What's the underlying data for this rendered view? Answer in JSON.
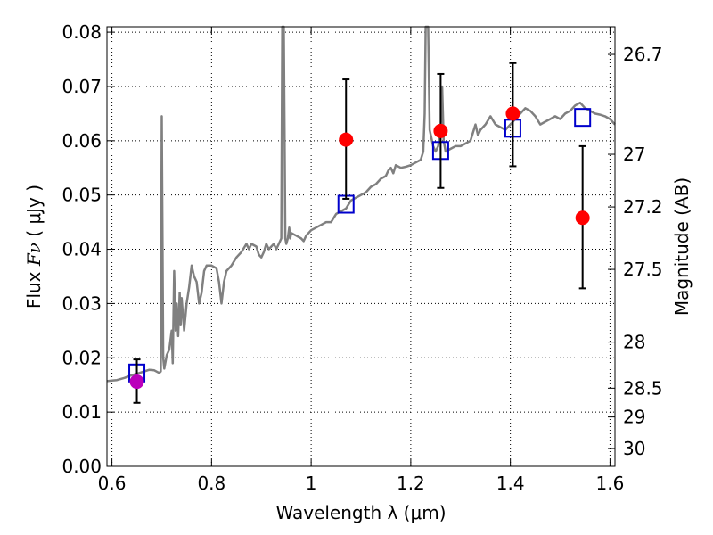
{
  "chart_data": {
    "type": "line",
    "xlabel": "Wavelength  λ (μm)",
    "ylabel": "Flux  Fν  ( μJy )",
    "ylabel_right": "Magnitude (AB)",
    "xlim": [
      0.59,
      1.61
    ],
    "ylim": [
      0.0,
      0.081
    ],
    "x_ticks": [
      0.6,
      0.8,
      1.0,
      1.2,
      1.4,
      1.6
    ],
    "x_tick_labels": [
      "0.6",
      "0.8",
      "1",
      "1.2",
      "1.4",
      "1.6"
    ],
    "y_ticks": [
      0.0,
      0.01,
      0.02,
      0.03,
      0.04,
      0.05,
      0.06,
      0.07,
      0.08
    ],
    "y_tick_labels": [
      "0.00",
      "0.01",
      "0.02",
      "0.03",
      "0.04",
      "0.05",
      "0.06",
      "0.07",
      "0.08"
    ],
    "right_ticks": [
      {
        "flux": 0.0759,
        "label": "26.7"
      },
      {
        "flux": 0.0575,
        "label": "27"
      },
      {
        "flux": 0.0478,
        "label": "27.2"
      },
      {
        "flux": 0.0363,
        "label": "27.5"
      },
      {
        "flux": 0.0229,
        "label": "28"
      },
      {
        "flux": 0.0144,
        "label": "28.5"
      },
      {
        "flux": 0.0091,
        "label": "29"
      },
      {
        "flux": 0.0033,
        "label": "30"
      }
    ],
    "grid": true,
    "series": [
      {
        "kind": "template_spectrum",
        "color": "#808080",
        "points": [
          [
            0.59,
            0.0157
          ],
          [
            0.61,
            0.0159
          ],
          [
            0.625,
            0.0163
          ],
          [
            0.64,
            0.0168
          ],
          [
            0.655,
            0.0172
          ],
          [
            0.665,
            0.0175
          ],
          [
            0.675,
            0.0178
          ],
          [
            0.685,
            0.0177
          ],
          [
            0.695,
            0.0172
          ],
          [
            0.698,
            0.0175
          ],
          [
            0.7,
            0.0645
          ],
          [
            0.703,
            0.02
          ],
          [
            0.705,
            0.018
          ],
          [
            0.71,
            0.0205
          ],
          [
            0.715,
            0.0215
          ],
          [
            0.72,
            0.025
          ],
          [
            0.722,
            0.019
          ],
          [
            0.725,
            0.036
          ],
          [
            0.728,
            0.025
          ],
          [
            0.73,
            0.03
          ],
          [
            0.733,
            0.024
          ],
          [
            0.736,
            0.032
          ],
          [
            0.738,
            0.026
          ],
          [
            0.74,
            0.031
          ],
          [
            0.745,
            0.025
          ],
          [
            0.75,
            0.03
          ],
          [
            0.755,
            0.033
          ],
          [
            0.76,
            0.037
          ],
          [
            0.765,
            0.035
          ],
          [
            0.77,
            0.034
          ],
          [
            0.775,
            0.03
          ],
          [
            0.78,
            0.032
          ],
          [
            0.785,
            0.036
          ],
          [
            0.79,
            0.037
          ],
          [
            0.8,
            0.037
          ],
          [
            0.81,
            0.0365
          ],
          [
            0.815,
            0.034
          ],
          [
            0.82,
            0.03
          ],
          [
            0.825,
            0.034
          ],
          [
            0.83,
            0.036
          ],
          [
            0.84,
            0.037
          ],
          [
            0.85,
            0.0385
          ],
          [
            0.86,
            0.0395
          ],
          [
            0.87,
            0.041
          ],
          [
            0.875,
            0.04
          ],
          [
            0.88,
            0.041
          ],
          [
            0.89,
            0.0405
          ],
          [
            0.895,
            0.039
          ],
          [
            0.9,
            0.0385
          ],
          [
            0.905,
            0.0395
          ],
          [
            0.91,
            0.041
          ],
          [
            0.915,
            0.04
          ],
          [
            0.92,
            0.0405
          ],
          [
            0.925,
            0.041
          ],
          [
            0.93,
            0.04
          ],
          [
            0.935,
            0.041
          ],
          [
            0.94,
            0.042
          ],
          [
            0.942,
            0.083
          ],
          [
            0.945,
            0.083
          ],
          [
            0.948,
            0.042
          ],
          [
            0.95,
            0.041
          ],
          [
            0.953,
            0.042
          ],
          [
            0.956,
            0.044
          ],
          [
            0.958,
            0.042
          ],
          [
            0.96,
            0.043
          ],
          [
            0.97,
            0.0425
          ],
          [
            0.98,
            0.042
          ],
          [
            0.985,
            0.0415
          ],
          [
            0.99,
            0.0425
          ],
          [
            1.0,
            0.0435
          ],
          [
            1.01,
            0.044
          ],
          [
            1.02,
            0.0445
          ],
          [
            1.03,
            0.045
          ],
          [
            1.04,
            0.045
          ],
          [
            1.05,
            0.0465
          ],
          [
            1.06,
            0.047
          ],
          [
            1.07,
            0.0475
          ],
          [
            1.08,
            0.049
          ],
          [
            1.09,
            0.0495
          ],
          [
            1.1,
            0.05
          ],
          [
            1.11,
            0.0505
          ],
          [
            1.12,
            0.0515
          ],
          [
            1.13,
            0.052
          ],
          [
            1.14,
            0.053
          ],
          [
            1.15,
            0.0535
          ],
          [
            1.155,
            0.0545
          ],
          [
            1.16,
            0.055
          ],
          [
            1.165,
            0.054
          ],
          [
            1.17,
            0.0555
          ],
          [
            1.18,
            0.055
          ],
          [
            1.19,
            0.0552
          ],
          [
            1.2,
            0.0555
          ],
          [
            1.21,
            0.056
          ],
          [
            1.22,
            0.0565
          ],
          [
            1.225,
            0.058
          ],
          [
            1.228,
            0.065
          ],
          [
            1.23,
            0.083
          ],
          [
            1.235,
            0.083
          ],
          [
            1.238,
            0.062
          ],
          [
            1.245,
            0.059
          ],
          [
            1.25,
            0.058
          ],
          [
            1.255,
            0.059
          ],
          [
            1.26,
            0.062
          ],
          [
            1.263,
            0.07
          ],
          [
            1.266,
            0.06
          ],
          [
            1.27,
            0.058
          ],
          [
            1.28,
            0.0585
          ],
          [
            1.29,
            0.059
          ],
          [
            1.3,
            0.059
          ],
          [
            1.31,
            0.0595
          ],
          [
            1.32,
            0.06
          ],
          [
            1.33,
            0.063
          ],
          [
            1.335,
            0.061
          ],
          [
            1.34,
            0.062
          ],
          [
            1.35,
            0.063
          ],
          [
            1.36,
            0.0645
          ],
          [
            1.37,
            0.063
          ],
          [
            1.38,
            0.0625
          ],
          [
            1.39,
            0.062
          ],
          [
            1.4,
            0.063
          ],
          [
            1.41,
            0.064
          ],
          [
            1.42,
            0.065
          ],
          [
            1.43,
            0.066
          ],
          [
            1.44,
            0.0655
          ],
          [
            1.45,
            0.0645
          ],
          [
            1.46,
            0.063
          ],
          [
            1.47,
            0.0635
          ],
          [
            1.48,
            0.064
          ],
          [
            1.49,
            0.0645
          ],
          [
            1.5,
            0.064
          ],
          [
            1.51,
            0.065
          ],
          [
            1.52,
            0.0655
          ],
          [
            1.53,
            0.0665
          ],
          [
            1.54,
            0.067
          ],
          [
            1.55,
            0.066
          ],
          [
            1.56,
            0.0655
          ],
          [
            1.57,
            0.065
          ],
          [
            1.58,
            0.0648
          ],
          [
            1.59,
            0.0645
          ],
          [
            1.6,
            0.064
          ],
          [
            1.61,
            0.063
          ]
        ]
      },
      {
        "kind": "model_photometry_boxes",
        "color": "#0000cc",
        "points": [
          [
            0.65,
            0.0172
          ],
          [
            1.07,
            0.0483
          ],
          [
            1.26,
            0.0582
          ],
          [
            1.405,
            0.0623
          ],
          [
            1.545,
            0.0643
          ]
        ]
      },
      {
        "kind": "observed_points",
        "color": "#ff0000",
        "points": [
          {
            "x": 1.07,
            "y": 0.0602,
            "ylow": 0.0493,
            "yhigh": 0.0713
          },
          {
            "x": 1.26,
            "y": 0.0618,
            "ylow": 0.0513,
            "yhigh": 0.0723
          },
          {
            "x": 1.405,
            "y": 0.065,
            "ylow": 0.0553,
            "yhigh": 0.0743
          },
          {
            "x": 1.545,
            "y": 0.0458,
            "ylow": 0.0328,
            "yhigh": 0.059
          }
        ]
      },
      {
        "kind": "observed_point_optical",
        "color": "#bb00bb",
        "points": [
          {
            "x": 0.65,
            "y": 0.0156,
            "ylow": 0.0117,
            "yhigh": 0.0197
          }
        ]
      }
    ]
  }
}
